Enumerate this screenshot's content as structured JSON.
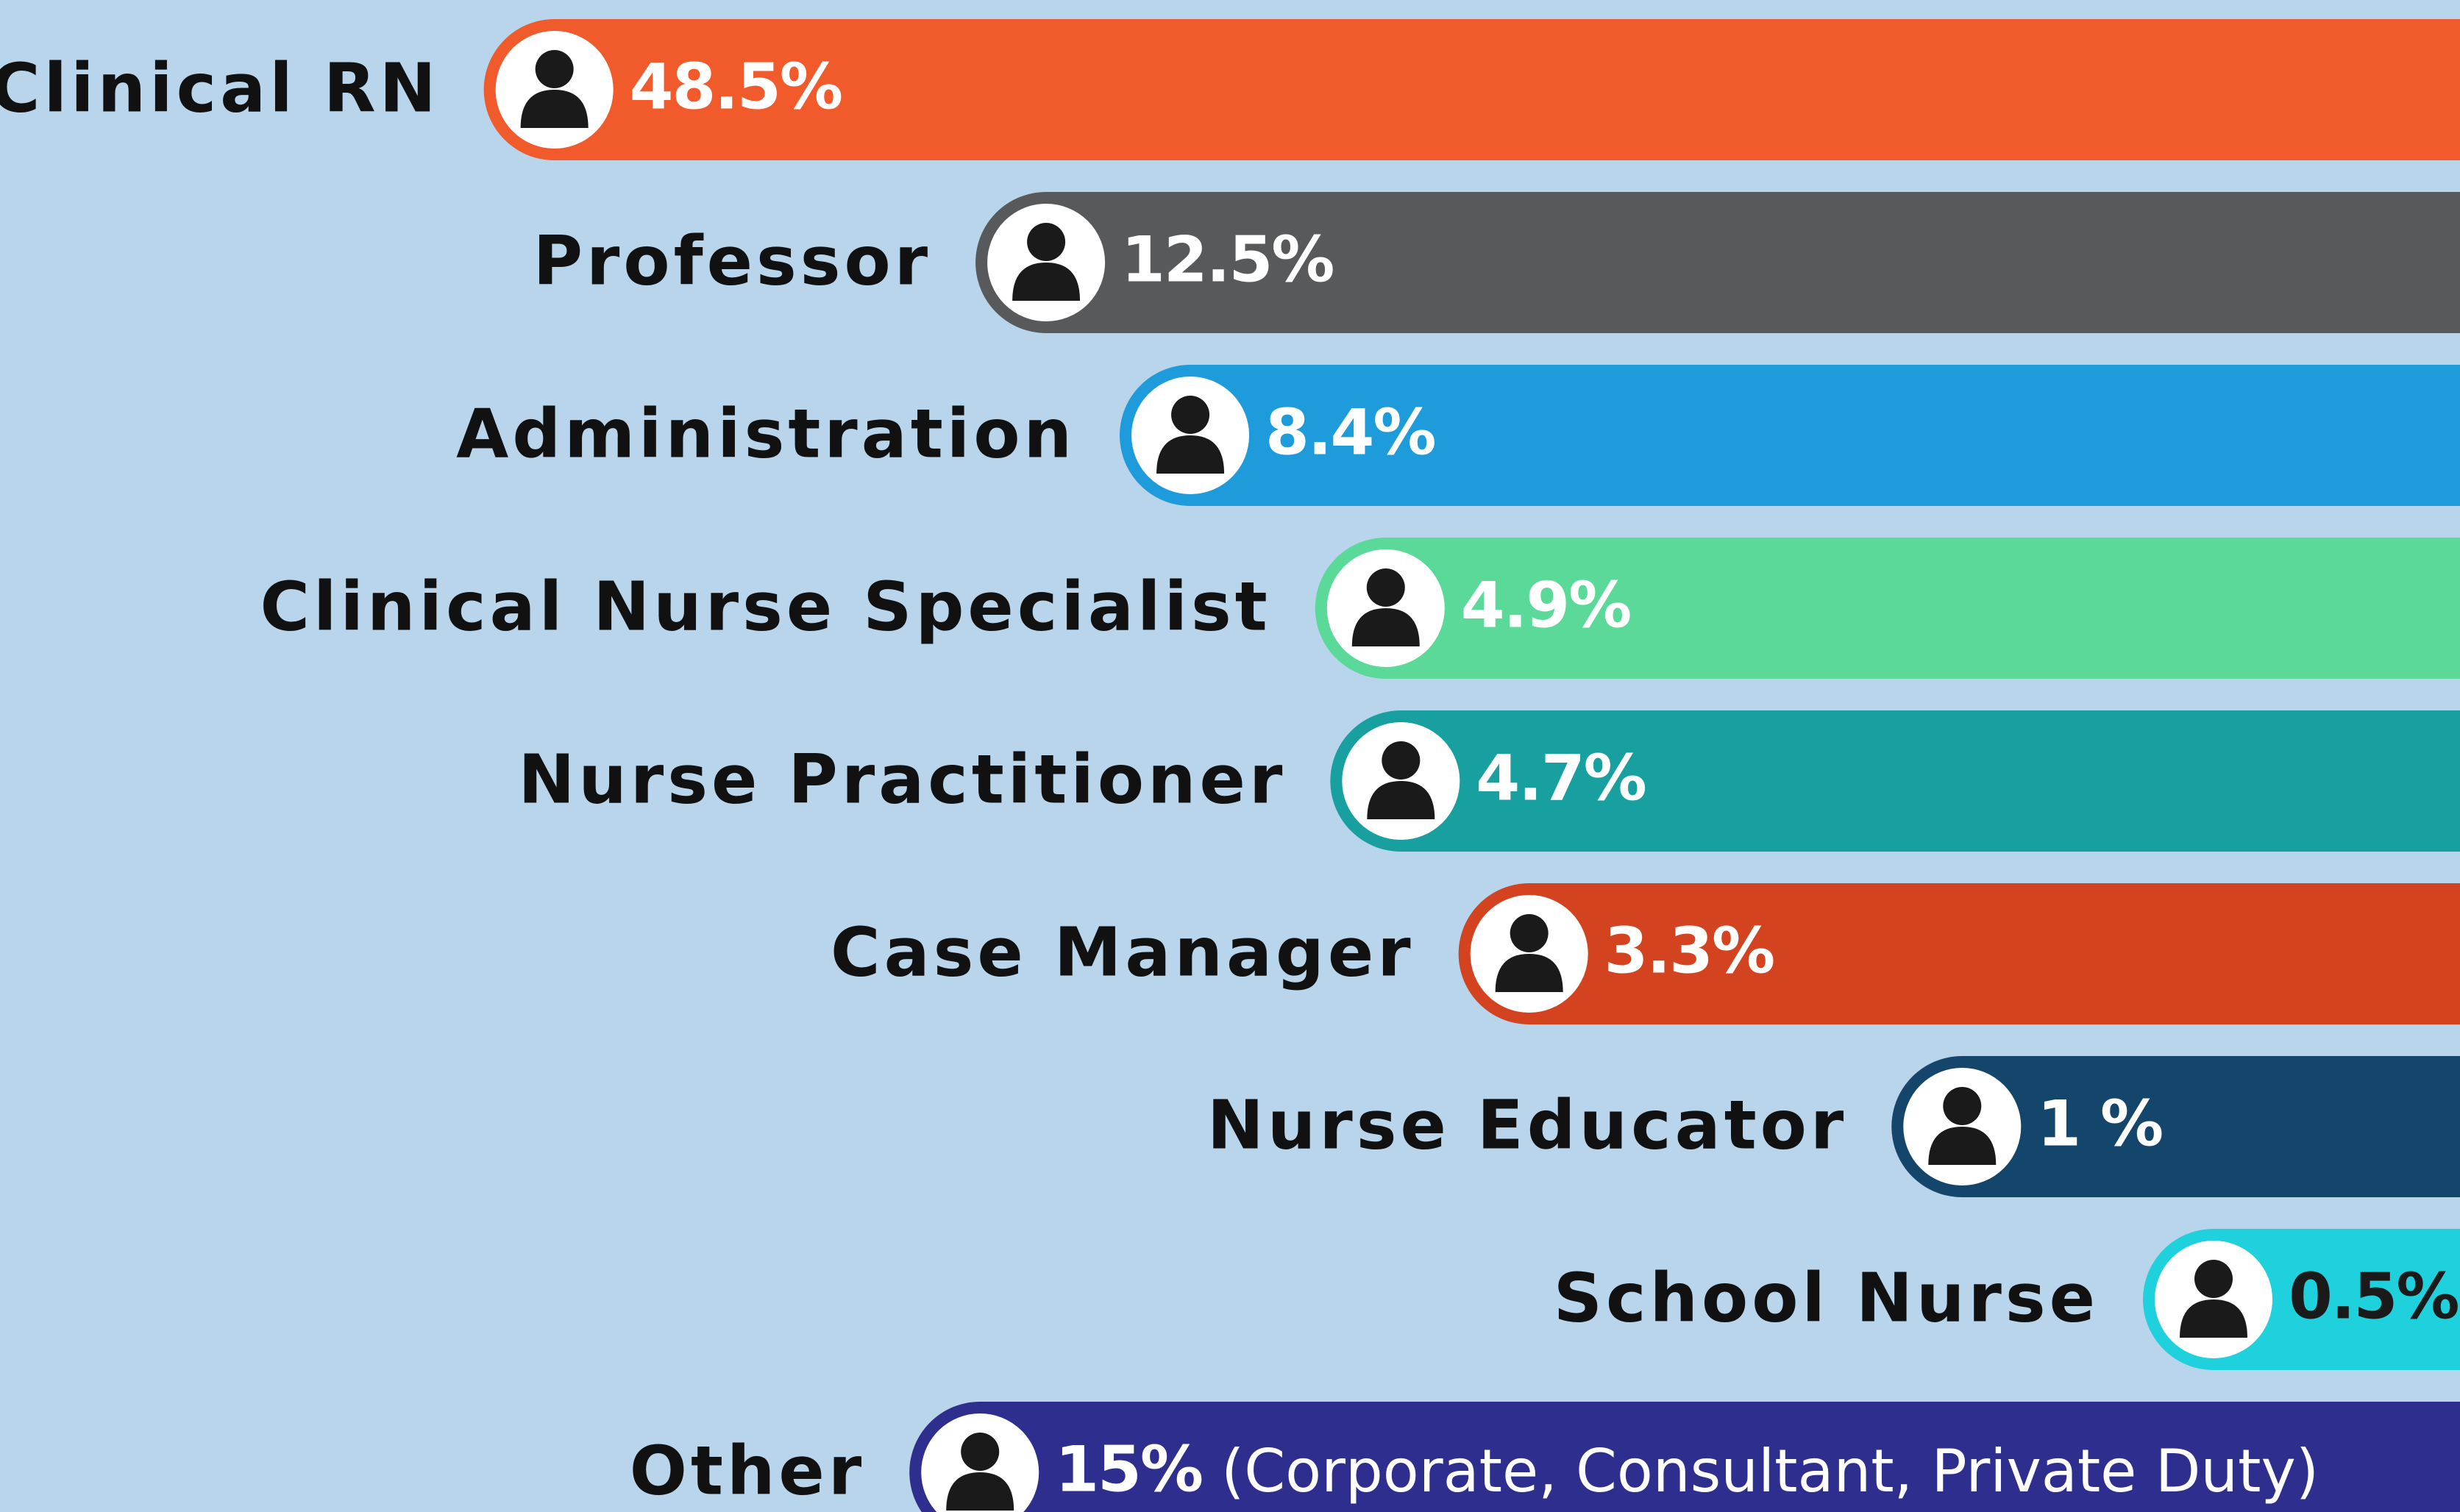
{
  "chart_data": {
    "type": "bar",
    "categories": [
      "Clinical RN",
      "Professor",
      "Administration",
      "Clinical Nurse Specialist",
      "Nurse Practitioner",
      "Case Manager",
      "Nurse Educator",
      "School Nurse",
      "Other"
    ],
    "values": [
      48.5,
      12.5,
      8.4,
      4.9,
      4.7,
      3.3,
      1,
      0.5,
      15
    ],
    "value_labels": [
      "48.5%",
      "12.5%",
      "8.4%",
      "4.9%",
      "4.7%",
      "3.3%",
      "1 %",
      "0.5%",
      "15%"
    ],
    "colors": [
      "#f15a2b",
      "#58595b",
      "#1e9bdb",
      "#5ad999",
      "#18a0a0",
      "#d4431f",
      "#14456b",
      "#1fd1dc",
      "#2e2e8f"
    ],
    "label_colors": [
      "#ffffff",
      "#ffffff",
      "#ffffff",
      "#ffffff",
      "#ffffff",
      "#ffffff",
      "#ffffff",
      "#1a1a1a",
      "#ffffff"
    ],
    "annotation": "(Corporate, Consultant, Private Duty)"
  }
}
